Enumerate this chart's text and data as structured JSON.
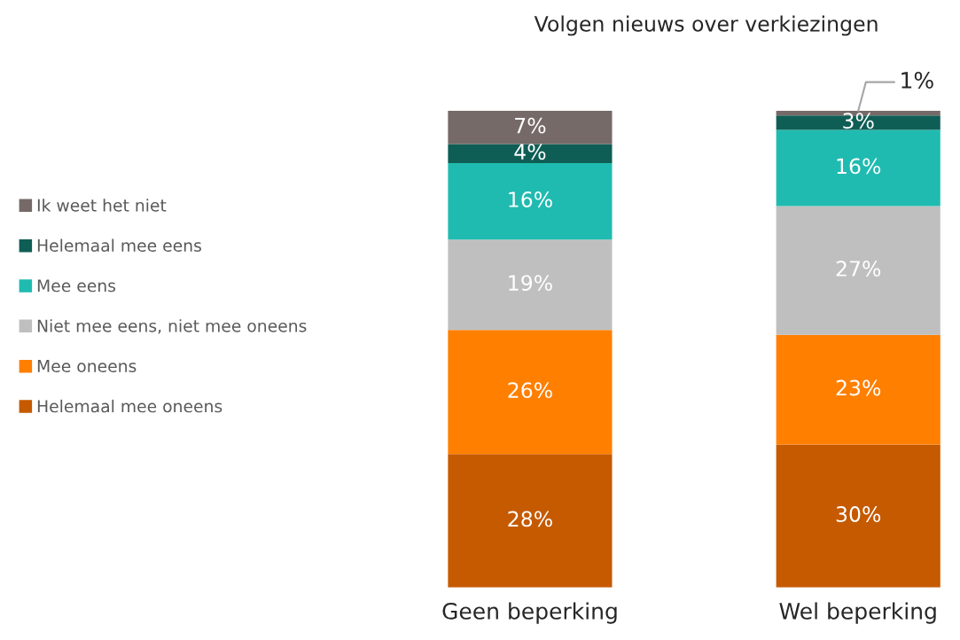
{
  "chart_data": {
    "type": "bar",
    "title": "Volgen nieuws over verkiezingen",
    "categories": [
      "Geen beperking",
      "Wel beperking"
    ],
    "stacked": true,
    "legend": "left",
    "series": [
      {
        "name": "Helemaal mee oneens",
        "color": "#c55a00",
        "values": [
          28,
          30
        ],
        "value_labels": [
          "28%",
          "30%"
        ]
      },
      {
        "name": "Mee oneens",
        "color": "#ff7f00",
        "values": [
          26,
          23
        ],
        "value_labels": [
          "26%",
          "23%"
        ]
      },
      {
        "name": "Niet mee eens, niet mee oneens",
        "color": "#bfbfbf",
        "values": [
          19,
          27
        ],
        "value_labels": [
          "19%",
          "27%"
        ]
      },
      {
        "name": "Mee eens",
        "color": "#20bbb0",
        "values": [
          16,
          16
        ],
        "value_labels": [
          "16%",
          "16%"
        ]
      },
      {
        "name": "Helemaal mee eens",
        "color": "#0f5e55",
        "values": [
          4,
          3
        ],
        "value_labels": [
          "4%",
          "3%"
        ]
      },
      {
        "name": "Ik weet het niet",
        "color": "#766a68",
        "values": [
          7,
          1
        ],
        "value_labels": [
          "7%",
          "1%"
        ]
      }
    ]
  }
}
